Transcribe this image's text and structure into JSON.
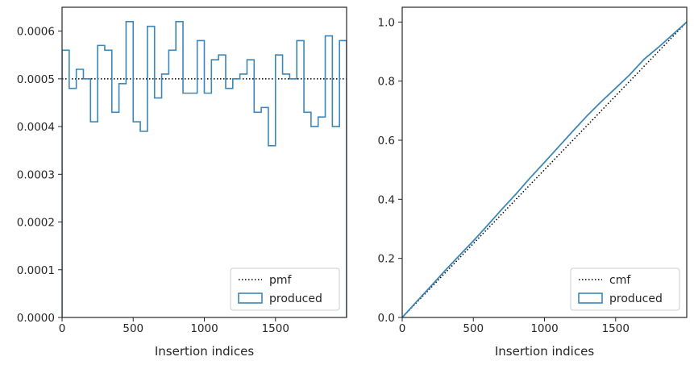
{
  "colors": {
    "hist": "#3a87b8",
    "ref_line": "#000000",
    "frame": "#262626"
  },
  "chart_data": [
    {
      "type": "line",
      "xlabel": "Insertion indices",
      "ylabel": "",
      "xlim": [
        0,
        2000
      ],
      "ylim": [
        0,
        0.00065
      ],
      "xticks": [
        0,
        500,
        1000,
        1500
      ],
      "xtick_labels": [
        "0",
        "500",
        "1000",
        "1500"
      ],
      "yticks": [
        0,
        0.0001,
        0.0002,
        0.0003,
        0.0004,
        0.0005,
        0.0006
      ],
      "ytick_labels": [
        "0.0000",
        "0.0001",
        "0.0002",
        "0.0003",
        "0.0004",
        "0.0005",
        "0.0006"
      ],
      "legend_position": "lower right",
      "series": [
        {
          "name": "pmf",
          "style": "dotted",
          "x": [
            0,
            2000
          ],
          "y": [
            0.0005,
            0.0005
          ]
        },
        {
          "name": "produced",
          "style": "step-histogram",
          "bin_edges": [
            0,
            50,
            100,
            150,
            200,
            250,
            300,
            350,
            400,
            450,
            500,
            550,
            600,
            650,
            700,
            750,
            800,
            850,
            900,
            950,
            1000,
            1050,
            1100,
            1150,
            1200,
            1250,
            1300,
            1350,
            1400,
            1450,
            1500,
            1550,
            1600,
            1650,
            1700,
            1750,
            1800,
            1850,
            1900,
            1950,
            2000
          ],
          "values": [
            0.00056,
            0.00048,
            0.00052,
            0.0005,
            0.00041,
            0.00057,
            0.00056,
            0.00043,
            0.00049,
            0.00062,
            0.00041,
            0.00039,
            0.00061,
            0.00046,
            0.00051,
            0.00056,
            0.00062,
            0.00047,
            0.00047,
            0.00058,
            0.00047,
            0.00054,
            0.00055,
            0.00048,
            0.0005,
            0.00051,
            0.00054,
            0.00043,
            0.00044,
            0.00036,
            0.00055,
            0.00051,
            0.0005,
            0.00058,
            0.00043,
            0.0004,
            0.00042,
            0.00059,
            0.0004,
            0.00058
          ]
        }
      ]
    },
    {
      "type": "line",
      "xlabel": "Insertion indices",
      "ylabel": "",
      "xlim": [
        0,
        2000
      ],
      "ylim": [
        0,
        1.05
      ],
      "xticks": [
        0,
        500,
        1000,
        1500
      ],
      "xtick_labels": [
        "0",
        "500",
        "1000",
        "1500"
      ],
      "yticks": [
        0,
        0.2,
        0.4,
        0.6,
        0.8,
        1.0
      ],
      "ytick_labels": [
        "0.0",
        "0.2",
        "0.4",
        "0.6",
        "0.8",
        "1.0"
      ],
      "legend_position": "lower right",
      "series": [
        {
          "name": "cmf",
          "style": "dotted",
          "x": [
            0,
            2000
          ],
          "y": [
            0,
            1
          ]
        },
        {
          "name": "produced",
          "style": "solid",
          "x": [
            0,
            100,
            200,
            300,
            400,
            500,
            600,
            700,
            800,
            900,
            1000,
            1100,
            1200,
            1300,
            1400,
            1500,
            1600,
            1700,
            1800,
            1900,
            2000
          ],
          "y": [
            0,
            0.053,
            0.105,
            0.158,
            0.209,
            0.259,
            0.312,
            0.366,
            0.418,
            0.473,
            0.525,
            0.578,
            0.631,
            0.683,
            0.731,
            0.776,
            0.822,
            0.874,
            0.914,
            0.957,
            1.0
          ]
        }
      ]
    }
  ]
}
